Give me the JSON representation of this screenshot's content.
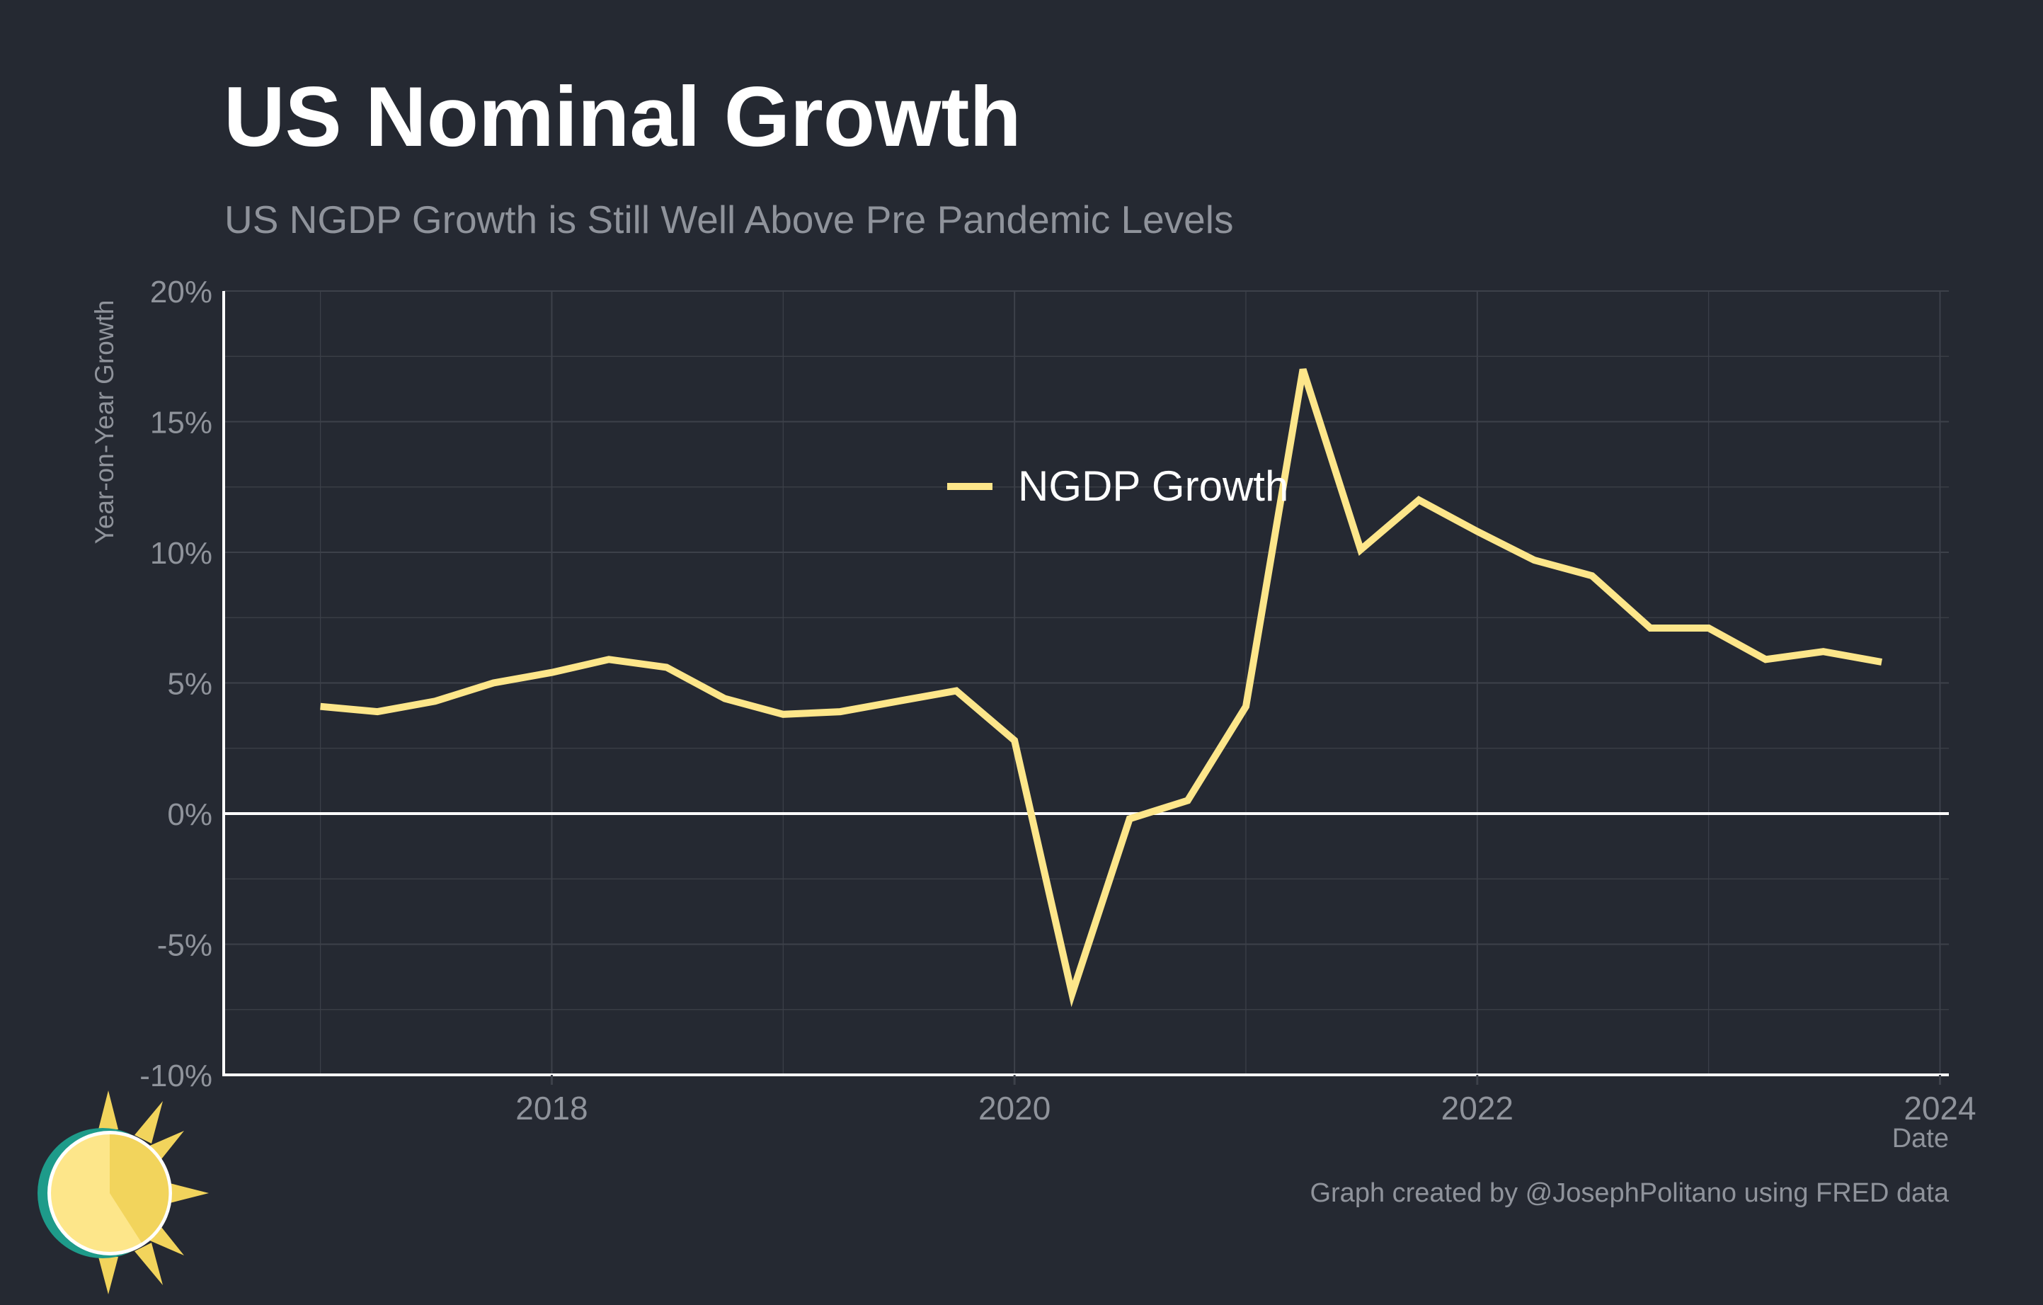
{
  "header": {
    "title": "US Nominal Growth",
    "subtitle": "US NGDP Growth is Still Well Above Pre Pandemic Levels"
  },
  "caption": "Graph created by @JosephPolitano using FRED data",
  "colors": {
    "background": "#252932",
    "series_line": "#fde68a",
    "gridline": "#3d414a",
    "axis": "#ffffff",
    "muted_text": "#8f939b"
  },
  "logo": {
    "icon": "sun-logo-icon"
  },
  "chart_data": {
    "type": "line",
    "title": "US Nominal Growth",
    "subtitle": "US NGDP Growth is Still Well Above Pre Pandemic Levels",
    "xlabel": "Date",
    "ylabel": "Year-on-Year Growth",
    "xlim": [
      "2016-08-01",
      "2024-01-15"
    ],
    "ylim": [
      -10,
      20
    ],
    "x_ticks": [
      2018,
      2020,
      2022,
      2024
    ],
    "y_ticks": [
      -10,
      -5,
      0,
      5,
      10,
      15,
      20
    ],
    "y_tick_labels": [
      "-10%",
      "-5%",
      "0%",
      "5%",
      "10%",
      "15%",
      "20%"
    ],
    "grid": true,
    "zero_line": true,
    "legend_position": "center-top",
    "series": [
      {
        "name": "NGDP Growth",
        "color": "#fde68a",
        "points": [
          {
            "x": "2017-01-01",
            "y": 4.1
          },
          {
            "x": "2017-04-01",
            "y": 3.9
          },
          {
            "x": "2017-07-01",
            "y": 4.3
          },
          {
            "x": "2017-10-01",
            "y": 5.0
          },
          {
            "x": "2018-01-01",
            "y": 5.4
          },
          {
            "x": "2018-04-01",
            "y": 5.9
          },
          {
            "x": "2018-07-01",
            "y": 5.6
          },
          {
            "x": "2018-10-01",
            "y": 4.4
          },
          {
            "x": "2019-01-01",
            "y": 3.8
          },
          {
            "x": "2019-04-01",
            "y": 3.9
          },
          {
            "x": "2019-07-01",
            "y": 4.3
          },
          {
            "x": "2019-10-01",
            "y": 4.7
          },
          {
            "x": "2020-01-01",
            "y": 2.8
          },
          {
            "x": "2020-04-01",
            "y": -6.9
          },
          {
            "x": "2020-07-01",
            "y": -0.2
          },
          {
            "x": "2020-10-01",
            "y": 0.5
          },
          {
            "x": "2021-01-01",
            "y": 4.1
          },
          {
            "x": "2021-04-01",
            "y": 17.0
          },
          {
            "x": "2021-07-01",
            "y": 10.1
          },
          {
            "x": "2021-10-01",
            "y": 12.0
          },
          {
            "x": "2022-01-01",
            "y": 10.8
          },
          {
            "x": "2022-04-01",
            "y": 9.7
          },
          {
            "x": "2022-07-01",
            "y": 9.1
          },
          {
            "x": "2022-10-01",
            "y": 7.1
          },
          {
            "x": "2023-01-01",
            "y": 7.1
          },
          {
            "x": "2023-04-01",
            "y": 5.9
          },
          {
            "x": "2023-07-01",
            "y": 6.2
          },
          {
            "x": "2023-10-01",
            "y": 5.8
          }
        ]
      }
    ]
  }
}
